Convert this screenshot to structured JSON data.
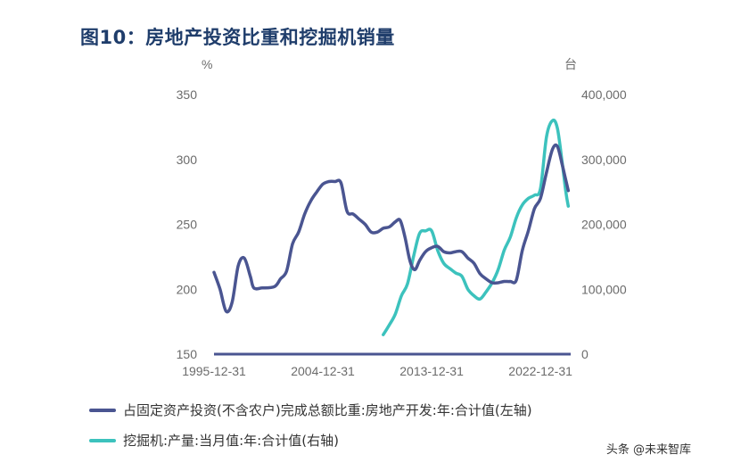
{
  "title": "图10：房地产投资比重和挖掘机销量",
  "colors": {
    "series_left": "#4a5591",
    "series_right": "#3cc2bd",
    "axis": "#4a5591"
  },
  "chart_data": {
    "type": "line",
    "left_axis": {
      "unit": "%",
      "ylim": [
        150,
        350
      ],
      "ticks": [
        "150",
        "200",
        "250",
        "300",
        "350"
      ]
    },
    "right_axis": {
      "unit": "台",
      "ylim": [
        0,
        400000
      ],
      "ticks": [
        "0",
        "100,000",
        "200,000",
        "300,000",
        "400,000"
      ]
    },
    "x_ticks": [
      "1995-12-31",
      "2004-12-31",
      "2013-12-31",
      "2022-12-31"
    ],
    "series": [
      {
        "name": "占固定资产投资(不含农户)完成总额比重:房地产开发:年:合计值(左轴)",
        "axis": "left",
        "points": [
          [
            1995.0,
            213
          ],
          [
            1995.5,
            200
          ],
          [
            1996.0,
            183
          ],
          [
            1996.5,
            190
          ],
          [
            1997.0,
            218
          ],
          [
            1997.5,
            224
          ],
          [
            1998.0,
            210
          ],
          [
            1998.3,
            201
          ],
          [
            1999.0,
            201
          ],
          [
            2000.0,
            202
          ],
          [
            2000.5,
            208
          ],
          [
            2001.0,
            214
          ],
          [
            2001.5,
            235
          ],
          [
            2002.0,
            244
          ],
          [
            2002.5,
            258
          ],
          [
            2003.0,
            268
          ],
          [
            2003.5,
            275
          ],
          [
            2004.0,
            281
          ],
          [
            2004.5,
            283
          ],
          [
            2005.0,
            283
          ],
          [
            2005.5,
            282
          ],
          [
            2006.0,
            260
          ],
          [
            2006.5,
            258
          ],
          [
            2007.0,
            254
          ],
          [
            2007.5,
            250
          ],
          [
            2008.0,
            244
          ],
          [
            2008.5,
            244
          ],
          [
            2009.0,
            247
          ],
          [
            2009.5,
            248
          ],
          [
            2010.0,
            252
          ],
          [
            2010.4,
            253
          ],
          [
            2010.8,
            240
          ],
          [
            2011.2,
            222
          ],
          [
            2011.6,
            215
          ],
          [
            2012.0,
            222
          ],
          [
            2012.5,
            229
          ],
          [
            2013.0,
            232
          ],
          [
            2013.5,
            233
          ],
          [
            2014.0,
            229
          ],
          [
            2014.5,
            228
          ],
          [
            2015.0,
            229
          ],
          [
            2015.5,
            229
          ],
          [
            2016.0,
            224
          ],
          [
            2016.5,
            220
          ],
          [
            2017.0,
            212
          ],
          [
            2017.5,
            208
          ],
          [
            2018.0,
            205
          ],
          [
            2018.5,
            205
          ],
          [
            2019.0,
            206
          ],
          [
            2019.5,
            206
          ],
          [
            2020.0,
            207
          ],
          [
            2020.5,
            230
          ],
          [
            2021.0,
            245
          ],
          [
            2021.5,
            262
          ],
          [
            2022.0,
            270
          ],
          [
            2022.5,
            290
          ],
          [
            2023.0,
            308
          ],
          [
            2023.4,
            310
          ],
          [
            2023.8,
            296
          ],
          [
            2024.0,
            288
          ],
          [
            2024.3,
            276
          ]
        ]
      },
      {
        "name": "挖掘机:产量:当月值:年:合计值(右轴)",
        "axis": "right",
        "points": [
          [
            2009.0,
            30000
          ],
          [
            2009.5,
            45000
          ],
          [
            2010.0,
            62000
          ],
          [
            2010.5,
            90000
          ],
          [
            2011.0,
            108000
          ],
          [
            2011.5,
            150000
          ],
          [
            2012.0,
            186000
          ],
          [
            2012.5,
            190000
          ],
          [
            2013.0,
            190000
          ],
          [
            2013.5,
            160000
          ],
          [
            2014.0,
            140000
          ],
          [
            2014.5,
            132000
          ],
          [
            2015.0,
            125000
          ],
          [
            2015.5,
            120000
          ],
          [
            2016.0,
            100000
          ],
          [
            2016.5,
            90000
          ],
          [
            2017.0,
            85000
          ],
          [
            2017.5,
            96000
          ],
          [
            2018.0,
            110000
          ],
          [
            2018.5,
            130000
          ],
          [
            2019.0,
            160000
          ],
          [
            2019.5,
            180000
          ],
          [
            2020.0,
            210000
          ],
          [
            2020.5,
            230000
          ],
          [
            2021.0,
            240000
          ],
          [
            2021.5,
            245000
          ],
          [
            2022.0,
            255000
          ],
          [
            2022.5,
            335000
          ],
          [
            2023.0,
            360000
          ],
          [
            2023.4,
            348000
          ],
          [
            2023.8,
            295000
          ],
          [
            2024.1,
            250000
          ],
          [
            2024.3,
            228000
          ]
        ]
      }
    ],
    "legend_position": "bottom",
    "grid": false
  },
  "watermark": "头条 @未来智库"
}
